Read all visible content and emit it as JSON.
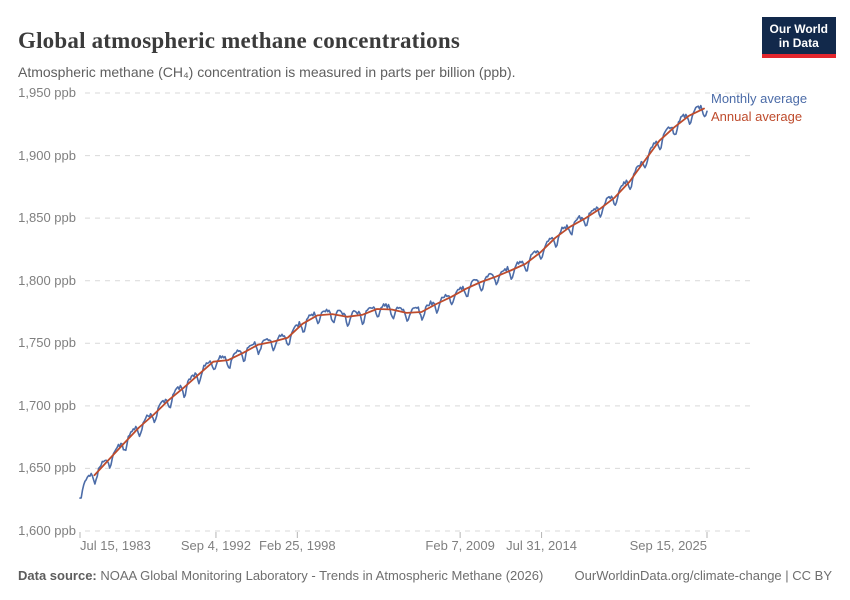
{
  "header": {
    "title": "Global atmospheric methane concentrations",
    "subtitle": "Atmospheric methane (CH₄) concentration is measured in parts per billion (ppb)."
  },
  "logo": {
    "line1": "Our World",
    "line2": "in Data",
    "bg_color": "#12294B",
    "bar_color": "#E3262D"
  },
  "chart_data": {
    "type": "line",
    "x_range": [
      1983.534,
      2025.704
    ],
    "y_axis": {
      "min": 1600,
      "max": 1950,
      "tick_step": 50,
      "unit": "ppb"
    },
    "x_ticks": [
      {
        "label": "Jul 15, 1983",
        "t": 1983.534
      },
      {
        "label": "Sep 4, 1992",
        "t": 1992.677
      },
      {
        "label": "Feb 25, 1998",
        "t": 1998.151
      },
      {
        "label": "Feb 7, 2009",
        "t": 2009.101
      },
      {
        "label": "Jul 31, 2014",
        "t": 2014.578
      },
      {
        "label": "Sep 15, 2025",
        "t": 2025.704
      }
    ],
    "grid_color": "#d9d9d9",
    "tick_color": "#b5b5b5",
    "series": [
      {
        "name": "Monthly average",
        "color": "#4C6CA8"
      },
      {
        "name": "Annual average",
        "color": "#BE4B2C"
      }
    ],
    "annual": {
      "years": [
        1984,
        1985,
        1986,
        1987,
        1988,
        1989,
        1990,
        1991,
        1992,
        1993,
        1994,
        1995,
        1996,
        1997,
        1998,
        1999,
        2000,
        2001,
        2002,
        2003,
        2004,
        2005,
        2006,
        2007,
        2008,
        2009,
        2010,
        2011,
        2012,
        2013,
        2014,
        2015,
        2016,
        2017,
        2018,
        2019,
        2020,
        2021,
        2022,
        2023,
        2024,
        2025
      ],
      "values": [
        1644.6,
        1657.3,
        1670.1,
        1682.7,
        1693.1,
        1704.6,
        1714.4,
        1724.9,
        1735.3,
        1736.6,
        1742.3,
        1748.8,
        1751.3,
        1754.5,
        1765.6,
        1772.3,
        1773.3,
        1771.2,
        1772.7,
        1777.4,
        1777.0,
        1774.3,
        1775.0,
        1781.4,
        1787.1,
        1793.6,
        1799.0,
        1803.2,
        1808.2,
        1813.5,
        1822.6,
        1834.3,
        1843.2,
        1849.7,
        1857.4,
        1866.6,
        1879.2,
        1895.7,
        1911.9,
        1922.6,
        1931.9,
        1937.5
      ]
    },
    "monthly_model": {
      "start": 1983.534,
      "end": 2025.704,
      "seasonal": [
        3.2,
        3.6,
        2.2,
        3.0,
        0.5,
        -3.4,
        -6.8,
        -6.0,
        -2.4,
        1.0,
        2.6,
        3.2
      ],
      "noise_amplitude": 1.2
    }
  },
  "footer": {
    "source_label": "Data source:",
    "source_text": " NOAA Global Monitoring Laboratory - Trends in Atmospheric Methane (2026)",
    "credit": "OurWorldinData.org/climate-change | CC BY"
  }
}
